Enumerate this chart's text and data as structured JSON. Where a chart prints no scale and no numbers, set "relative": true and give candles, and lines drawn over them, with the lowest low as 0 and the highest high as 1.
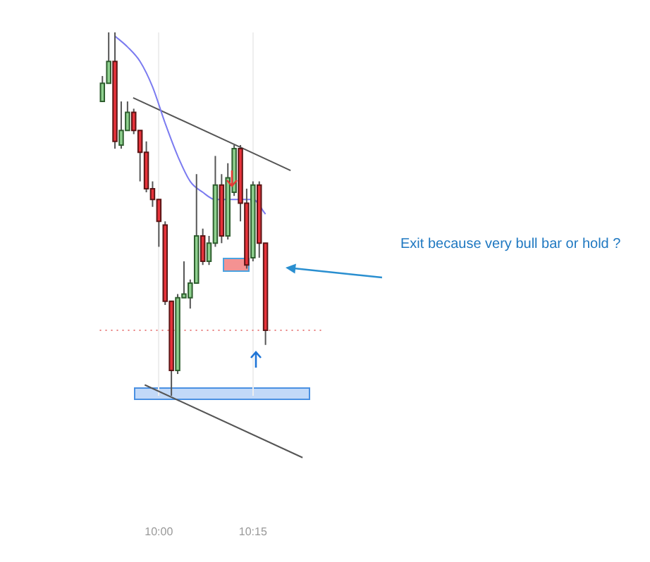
{
  "chart_data": {
    "type": "candlestick",
    "relative": true,
    "legend": false,
    "grid": "x",
    "x": [
      9.85,
      9.8667,
      9.8833,
      9.9,
      9.9167,
      9.9333,
      9.95,
      9.9667,
      9.9833,
      10,
      10.0167,
      10.0333,
      10.05,
      10.0667,
      10.0833,
      10.1,
      10.1167,
      10.1333,
      10.15,
      10.1667,
      10.1833,
      10.2,
      10.2167,
      10.2333,
      10.25,
      10.2667,
      10.2833
    ],
    "xlim": [
      9.843,
      10.432
    ],
    "xticks": [
      {
        "value": 10,
        "label": "10:00"
      },
      {
        "value": 10.25,
        "label": "10:15"
      }
    ],
    "ohlc": [
      [
        0.81,
        0.88,
        0.81,
        0.86
      ],
      [
        0.86,
        1,
        0.86,
        0.92
      ],
      [
        0.92,
        1,
        0.68,
        0.7
      ],
      [
        0.69,
        0.81,
        0.68,
        0.73
      ],
      [
        0.73,
        0.81,
        0.73,
        0.78
      ],
      [
        0.78,
        0.79,
        0.72,
        0.73
      ],
      [
        0.73,
        0.73,
        0.59,
        0.67
      ],
      [
        0.67,
        0.7,
        0.56,
        0.57
      ],
      [
        0.57,
        0.59,
        0.52,
        0.54
      ],
      [
        0.54,
        0.54,
        0.41,
        0.48
      ],
      [
        0.47,
        0.48,
        0.25,
        0.26
      ],
      [
        0.26,
        0.26,
        0,
        0.07
      ],
      [
        0.07,
        0.28,
        0.06,
        0.27
      ],
      [
        0.27,
        0.37,
        0.27,
        0.28
      ],
      [
        0.27,
        0.32,
        0.24,
        0.31
      ],
      [
        0.31,
        0.61,
        0.31,
        0.44
      ],
      [
        0.44,
        0.46,
        0.36,
        0.37
      ],
      [
        0.37,
        0.44,
        0.36,
        0.42
      ],
      [
        0.42,
        0.66,
        0.41,
        0.58
      ],
      [
        0.58,
        0.61,
        0.42,
        0.44
      ],
      [
        0.44,
        0.64,
        0.43,
        0.6
      ],
      [
        0.56,
        0.69,
        0.55,
        0.68
      ],
      [
        0.68,
        0.69,
        0.48,
        0.53
      ],
      [
        0.53,
        0.57,
        0.35,
        0.36
      ],
      [
        0.38,
        0.59,
        0.37,
        0.58
      ],
      [
        0.58,
        0.59,
        0.38,
        0.42
      ],
      [
        0.42,
        0.42,
        0.14,
        0.18
      ]
    ],
    "series": [
      {
        "type": "line",
        "color": "#7b7bf0",
        "x": [
          9.8833,
          9.9167,
          9.95,
          9.9833,
          10.0167,
          10.05,
          10.0833,
          10.1167,
          10.15,
          10.1833,
          10.2167,
          10.25,
          10.2833
        ],
        "values": [
          0.99,
          0.96,
          0.92,
          0.85,
          0.75,
          0.66,
          0.59,
          0.56,
          0.54,
          0.54,
          0.54,
          0.54,
          0.5
        ]
      },
      {
        "type": "line",
        "color": "#555555",
        "x": [
          9.9317,
          10.35
        ],
        "values": [
          0.82,
          0.62
        ]
      },
      {
        "type": "line",
        "color": "#555555",
        "x": [
          9.9625,
          10.3817
        ],
        "values": [
          0.03,
          -0.17
        ]
      }
    ],
    "ref_lines": [
      {
        "axis": "y",
        "value": 0.18,
        "color": "#e88080",
        "line_style": "dotted"
      }
    ],
    "annotations": [
      "Exit because very bull bar or hold ?"
    ]
  }
}
